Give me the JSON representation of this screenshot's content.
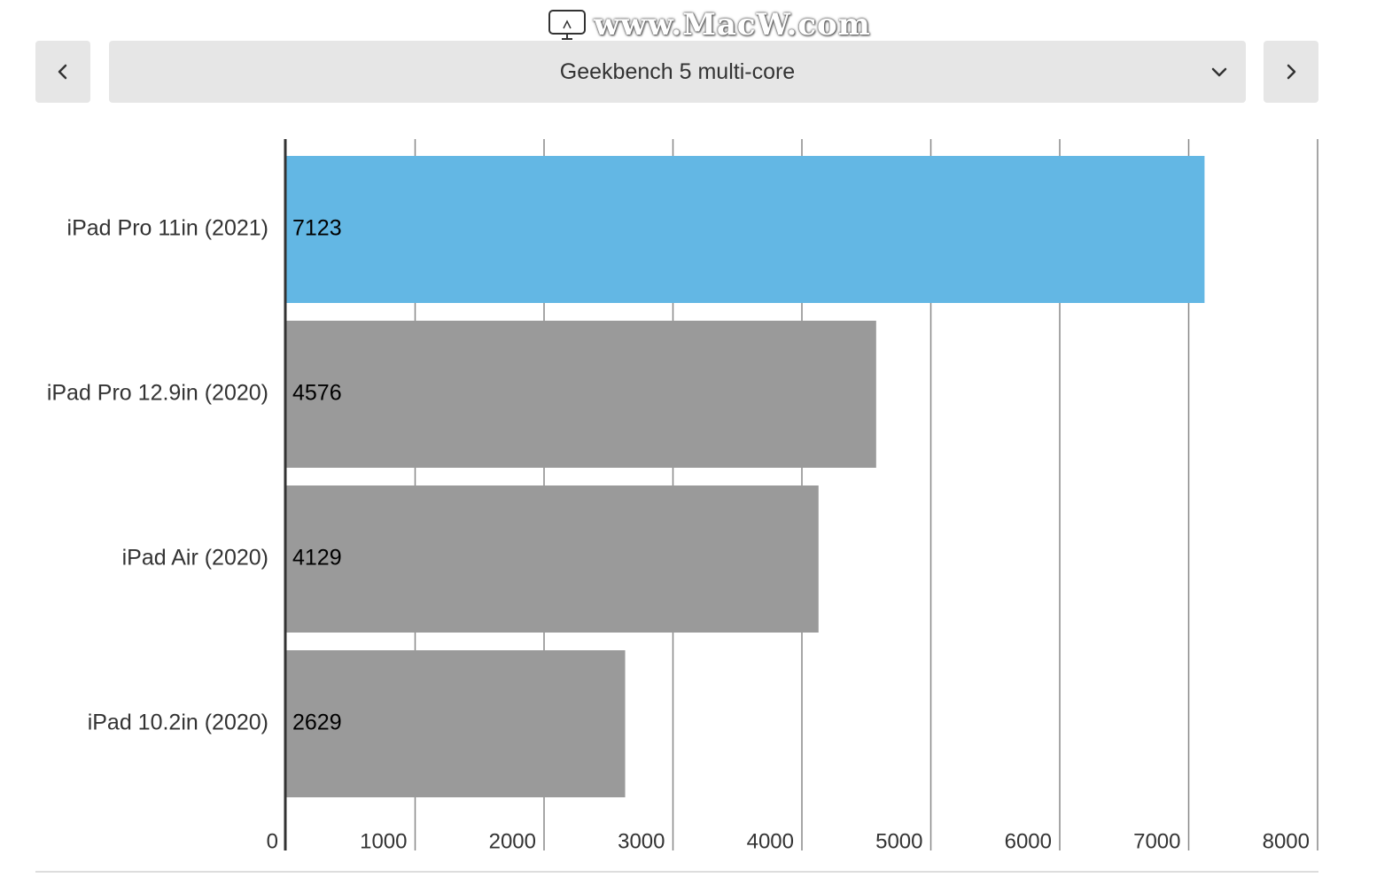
{
  "watermark": {
    "text": "www.MacW.com",
    "logo_icon": "macw-logo-icon"
  },
  "nav": {
    "prev_icon": "chevron-left-icon",
    "next_icon": "chevron-right-icon"
  },
  "selector": {
    "label": "Geekbench 5 multi-core",
    "icon": "chevron-down-icon"
  },
  "colors": {
    "highlight_bar": "#63b7e4",
    "other_bar": "#9a9a9a",
    "grid": "#888888",
    "axis": "#333333",
    "button_bg": "#e6e6e6"
  },
  "chart_data": {
    "type": "bar",
    "orientation": "horizontal",
    "title": "",
    "xlabel": "",
    "ylabel": "",
    "categories": [
      "iPad Pro 11in (2021)",
      "iPad Pro 12.9in (2020)",
      "iPad Air (2020)",
      "iPad 10.2in (2020)"
    ],
    "values": [
      7123,
      4576,
      4129,
      2629
    ],
    "highlighted": [
      true,
      false,
      false,
      false
    ],
    "xlim": [
      0,
      8000
    ],
    "xticks": [
      0,
      1000,
      2000,
      3000,
      4000,
      5000,
      6000,
      7000,
      8000
    ],
    "grid": true,
    "data_labels": true,
    "legend": "none"
  }
}
